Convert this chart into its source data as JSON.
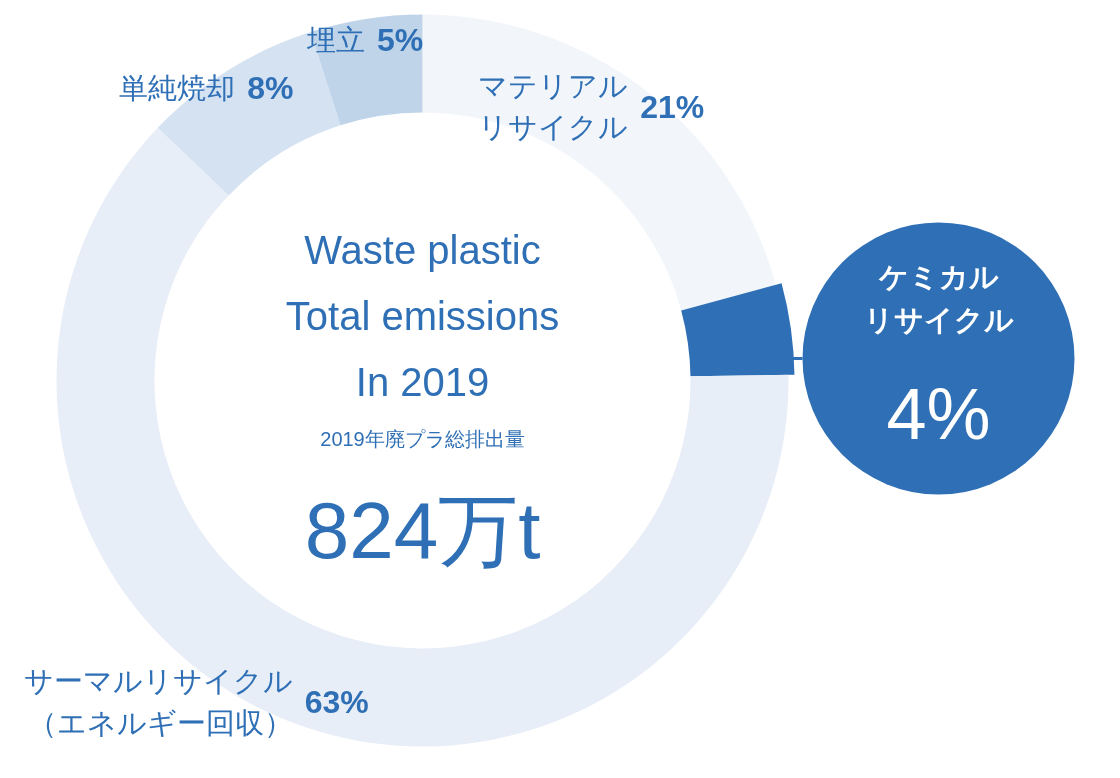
{
  "chart_data": {
    "type": "donut",
    "title": "Waste plastic\nTotal emissions\nIn 2019",
    "subtitle": "2019年廃プラ総排出量",
    "annotations": [
      "824万t"
    ],
    "categories": [
      "マテリアルリサイクル",
      "ケミカルリサイクル",
      "サーマルリサイクル（エネルギー回収）",
      "単純焼却",
      "埋立"
    ],
    "values": [
      21,
      4,
      63,
      8,
      5
    ],
    "value_labels": [
      "21%",
      "4%",
      "63%",
      "8%",
      "5%"
    ],
    "colors": [
      "#f2f6fb",
      "#2f6fb5",
      "#e8eef7",
      "#d5e2f1",
      "#c0d4e9"
    ]
  }
}
